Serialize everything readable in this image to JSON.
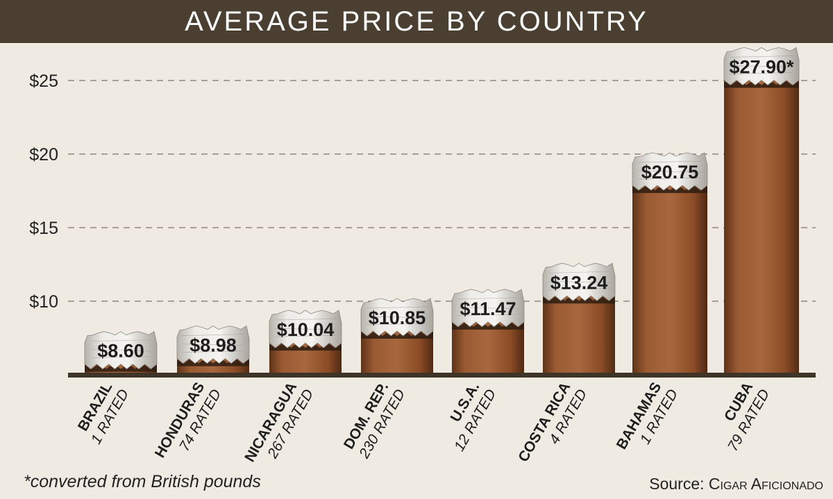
{
  "chart_data": {
    "type": "bar",
    "title": "AVERAGE PRICE BY COUNTRY",
    "categories": [
      "BRAZIL",
      "HONDURAS",
      "NICARAGUA",
      "DOM. REP.",
      "U.S.A.",
      "COSTA RICA",
      "BAHAMAS",
      "CUBA"
    ],
    "rated": [
      "1 RATED",
      "74 RATED",
      "267 RATED",
      "230 RATED",
      "12 RATED",
      "4 RATED",
      "1 RATED",
      "79 RATED"
    ],
    "values": [
      8.6,
      8.98,
      10.04,
      10.85,
      11.47,
      13.24,
      20.75,
      27.9
    ],
    "value_labels": [
      "$8.60",
      "$8.98",
      "$10.04",
      "$10.85",
      "$11.47",
      "$13.24",
      "$20.75",
      "$27.90*"
    ],
    "yticks": [
      10,
      15,
      20,
      25
    ],
    "ytick_labels": [
      "$10",
      "$15",
      "$20",
      "$25"
    ],
    "ylim": [
      5,
      28.5
    ],
    "grid": "dashed horizontal",
    "xlabel": "",
    "ylabel": ""
  },
  "footnote": "*converted from British pounds",
  "source": {
    "prefix": "Source: ",
    "name": "Cigar Aficionado"
  },
  "colors": {
    "title_bg": "#4a3f31",
    "background": "#efebe2",
    "cigar_wrapper": "#8a4e2a",
    "ash": "#e6e4df",
    "baseline": "#3e3427",
    "gridline": "#8f887c"
  }
}
